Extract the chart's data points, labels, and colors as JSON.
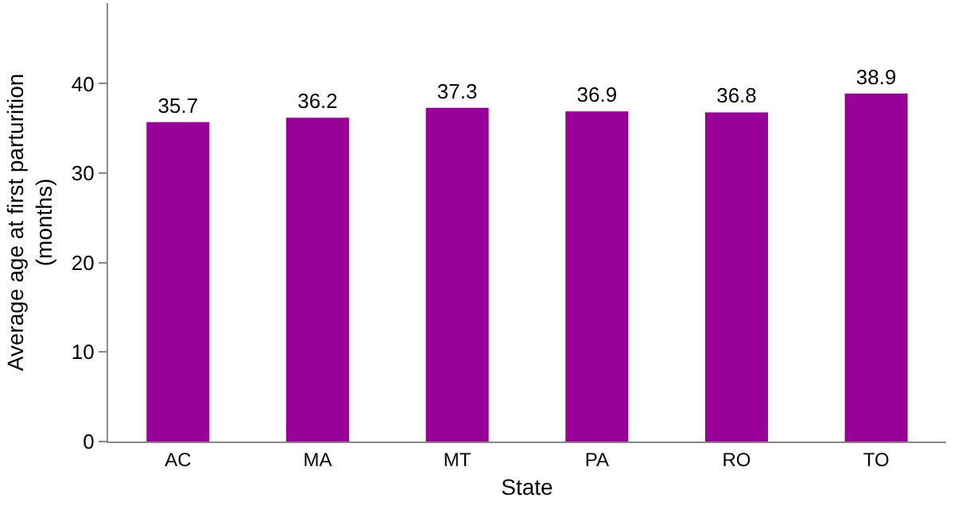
{
  "chart_data": {
    "type": "bar",
    "xlabel": "State",
    "ylabel": "Average age at first parturition\n(months)",
    "categories": [
      "AC",
      "MA",
      "MT",
      "PA",
      "RO",
      "TO"
    ],
    "values": [
      35.7,
      36.2,
      37.3,
      36.9,
      36.8,
      38.9
    ],
    "color": "#990099",
    "data_labels": true,
    "legend": false,
    "ylim": [
      0,
      49
    ],
    "yticks": [
      0,
      10,
      20,
      30,
      40
    ]
  }
}
